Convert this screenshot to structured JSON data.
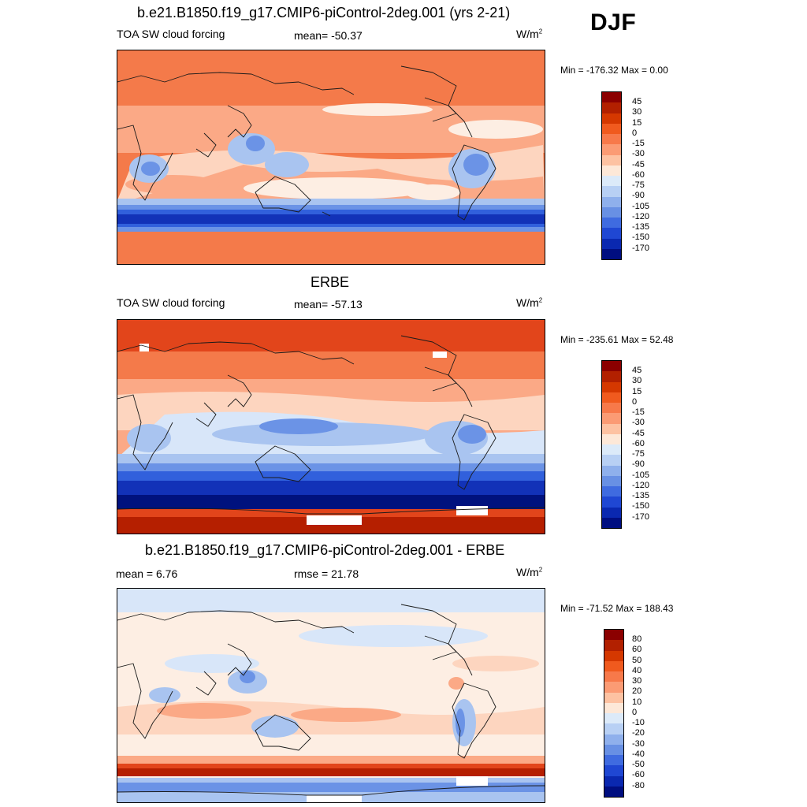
{
  "season": "DJF",
  "panels": [
    {
      "title": "b.e21.B1850.f19_g17.CMIP6-piControl-2deg.001 (yrs 2-21)",
      "left_label": "TOA SW cloud forcing",
      "center_label": "mean= -50.37",
      "units": "W/m",
      "units_exp": "2",
      "minmax": "Min = -176.32 Max =   0.00",
      "ticks": [
        "45",
        "30",
        "15",
        "0",
        "-15",
        "-30",
        "-45",
        "-60",
        "-75",
        "-90",
        "-105",
        "-120",
        "-135",
        "-150",
        "-170"
      ]
    },
    {
      "title": "ERBE",
      "left_label": "TOA SW cloud forcing",
      "center_label": "mean= -57.13",
      "units": "W/m",
      "units_exp": "2",
      "minmax": "Min = -235.61 Max =  52.48",
      "ticks": [
        "45",
        "30",
        "15",
        "0",
        "-15",
        "-30",
        "-45",
        "-60",
        "-75",
        "-90",
        "-105",
        "-120",
        "-135",
        "-150",
        "-170"
      ]
    },
    {
      "title": "b.e21.B1850.f19_g17.CMIP6-piControl-2deg.001 - ERBE",
      "left_label": "mean =   6.76",
      "center_label": "rmse =  21.78",
      "units": "W/m",
      "units_exp": "2",
      "minmax": "Min = -71.52 Max = 188.43",
      "ticks": [
        "80",
        "60",
        "50",
        "40",
        "30",
        "20",
        "10",
        "0",
        "-10",
        "-20",
        "-30",
        "-40",
        "-50",
        "-60",
        "-80"
      ]
    }
  ],
  "colorbar_colors": [
    "#8b0000",
    "#b22000",
    "#d53800",
    "#f05a1e",
    "#f7794a",
    "#fb9b74",
    "#fdc2a2",
    "#fde8d8",
    "#dceaf9",
    "#b8d0f4",
    "#8fb0ec",
    "#6890e4",
    "#3f6be0",
    "#1f47d3",
    "#0a28b0",
    "#000e80"
  ],
  "map_colors": {
    "deep_red": "#b51f00",
    "red": "#e2451b",
    "orange": "#f47a4a",
    "salmon": "#fba986",
    "peach": "#fdd5bf",
    "cream": "#fdeee3",
    "pale_blue": "#d8e6f9",
    "light_blue": "#a9c4f0",
    "mid_blue": "#6b93e6",
    "blue": "#3160dc",
    "dark_blue": "#1232b8",
    "navy": "#00127e"
  }
}
